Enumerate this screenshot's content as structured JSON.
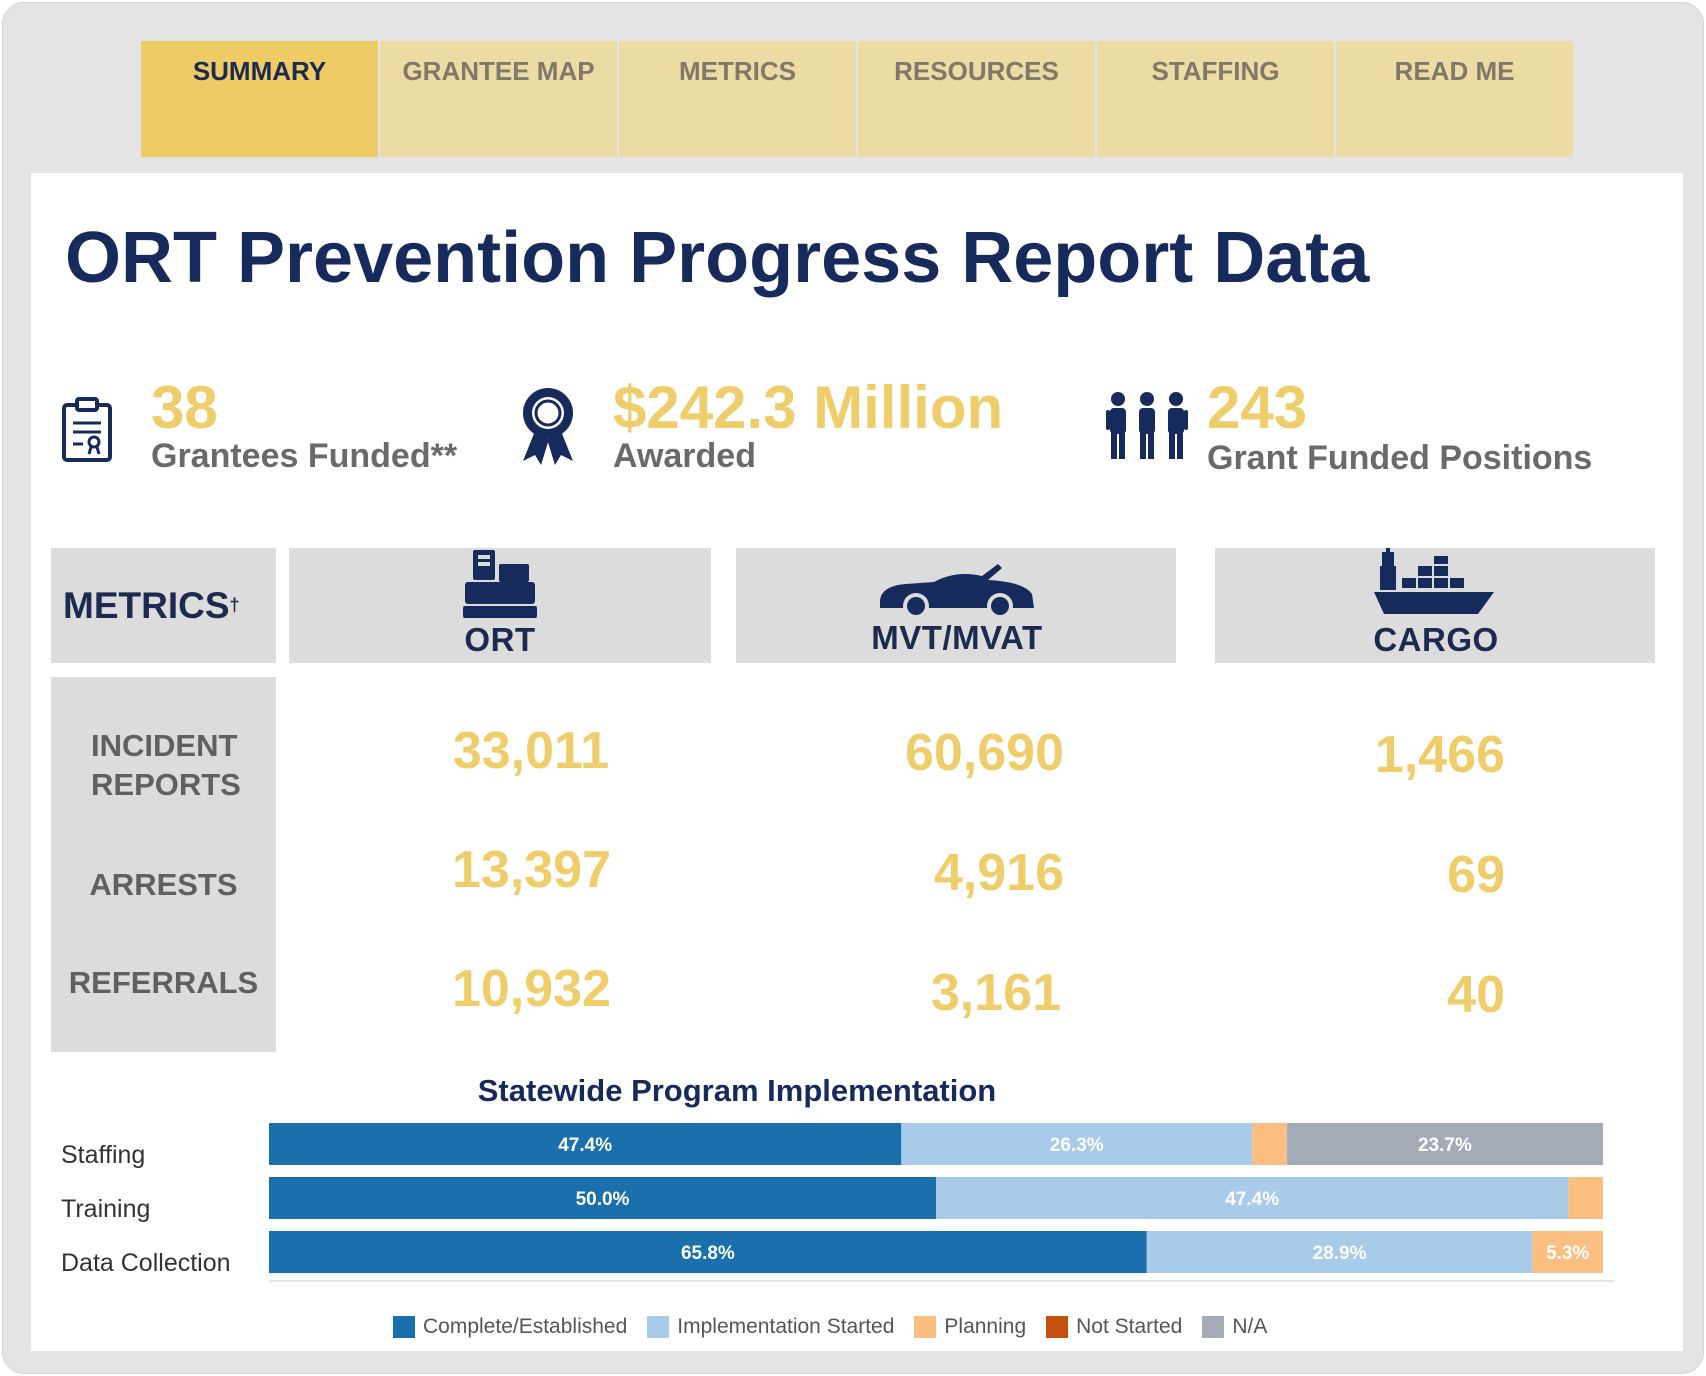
{
  "tabs": [
    {
      "label": "SUMMARY",
      "active": true
    },
    {
      "label": "GRANTEE MAP",
      "active": false
    },
    {
      "label": "METRICS",
      "active": false
    },
    {
      "label": "RESOURCES",
      "active": false
    },
    {
      "label": "STAFFING",
      "active": false
    },
    {
      "label": "READ ME",
      "active": false
    }
  ],
  "title": "ORT Prevention Progress Report Data",
  "kpis": {
    "grantees": {
      "value": "38",
      "label": "Grantees Funded**",
      "icon": "clipboard-certificate-icon"
    },
    "awarded": {
      "value": "$242.3 Million",
      "label": "Awarded",
      "icon": "award-ribbon-icon"
    },
    "positions": {
      "value": "243",
      "label": "Grant Funded Positions",
      "icon": "people-group-icon"
    }
  },
  "metrics_table": {
    "header": "METRICS",
    "header_mark": "†",
    "categories": [
      {
        "label": "ORT",
        "icon": "cash-register-icon"
      },
      {
        "label": "MVT/MVAT",
        "icon": "car-icon"
      },
      {
        "label": "CARGO",
        "icon": "cargo-ship-icon"
      }
    ],
    "rows": [
      {
        "label": "INCIDENT REPORTS",
        "values": [
          "33,011",
          "60,690",
          "1,466"
        ]
      },
      {
        "label": "ARRESTS",
        "values": [
          "13,397",
          "4,916",
          "69"
        ]
      },
      {
        "label": "REFERRALS",
        "values": [
          "10,932",
          "3,161",
          "40"
        ]
      }
    ]
  },
  "chart_data": {
    "type": "bar",
    "orientation": "horizontal",
    "stacked": true,
    "title": "Statewide Program Implementation",
    "categories": [
      "Staffing",
      "Training",
      "Data Collection"
    ],
    "series": [
      {
        "name": "Complete/Established",
        "color": "#1a70ac",
        "values": [
          47.4,
          50.0,
          65.8
        ],
        "labels": [
          "47.4%",
          "50.0%",
          "65.8%"
        ]
      },
      {
        "name": "Implementation Started",
        "color": "#a7cbe8",
        "values": [
          26.3,
          47.4,
          28.9
        ],
        "labels": [
          "26.3%",
          "47.4%",
          "28.9%"
        ]
      },
      {
        "name": "Planning",
        "color": "#fbbe81",
        "values": [
          2.6,
          2.6,
          5.3
        ],
        "labels": [
          "",
          "",
          "5.3%"
        ]
      },
      {
        "name": "Not Started",
        "color": "#c4520e",
        "values": [
          0,
          0,
          0
        ],
        "labels": [
          "",
          "",
          ""
        ]
      },
      {
        "name": "N/A",
        "color": "#a4abb7",
        "values": [
          23.7,
          0,
          0
        ],
        "labels": [
          "23.7%",
          "",
          ""
        ]
      }
    ],
    "xlim": [
      0,
      100
    ],
    "grid": false,
    "legend": "bottom"
  }
}
